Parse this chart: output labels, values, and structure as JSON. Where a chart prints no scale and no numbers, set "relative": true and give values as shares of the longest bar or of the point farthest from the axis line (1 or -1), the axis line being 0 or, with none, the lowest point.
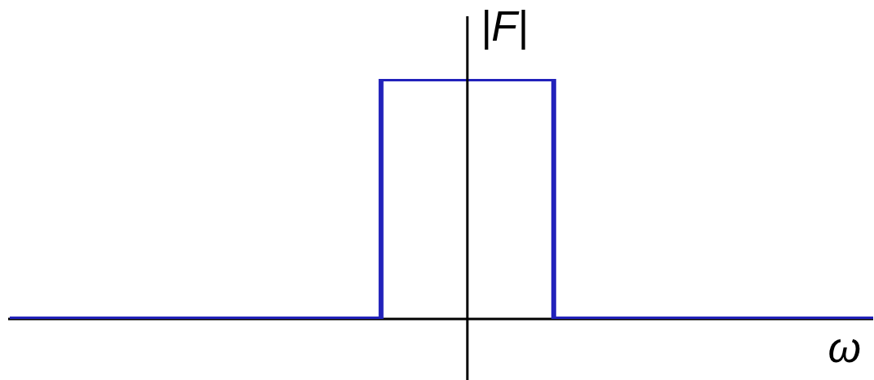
{
  "chart_data": {
    "type": "step",
    "xlabel": "ω",
    "ylabel": "|F|",
    "relative": true,
    "color": "#2222bb",
    "categories": [
      null,
      null,
      null,
      null,
      null,
      null,
      null,
      null,
      null,
      null,
      null,
      null,
      null,
      null,
      null,
      null,
      null,
      null,
      null,
      null,
      null,
      null,
      null,
      null,
      null,
      null,
      null,
      null,
      null,
      null,
      null,
      null,
      null,
      null,
      null,
      null,
      null,
      null,
      null,
      null,
      null,
      null,
      null,
      null,
      null,
      null,
      null,
      null,
      null,
      null,
      null
    ],
    "values": [
      0,
      0,
      0,
      0,
      0,
      0,
      0,
      0,
      0,
      0,
      0,
      0,
      0,
      0,
      0,
      0,
      0,
      0,
      0,
      0,
      0,
      0,
      1,
      1,
      1,
      1,
      1,
      1,
      1,
      1,
      1,
      1,
      0,
      0,
      0,
      0,
      0,
      0,
      0,
      0,
      0,
      0,
      0,
      0,
      0,
      0,
      0,
      0,
      0,
      0,
      0
    ]
  }
}
